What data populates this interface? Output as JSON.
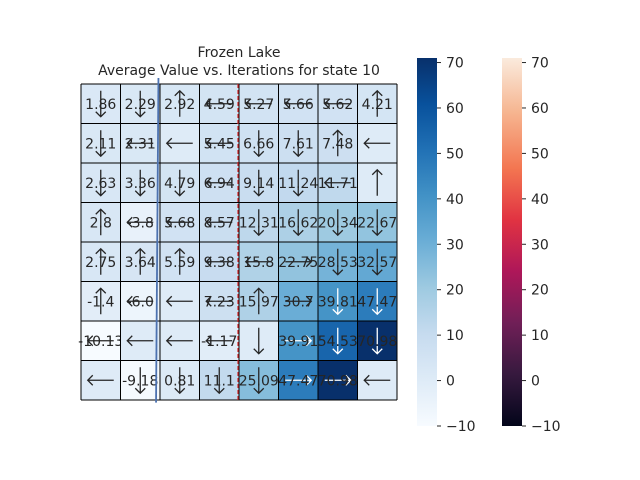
{
  "chart_data": {
    "type": "heatmap",
    "title": "Frozen Lake",
    "subtitle": "Average Value vs. Iterations for state 10",
    "xlabel": "",
    "ylabel": "",
    "colormap": "Blues",
    "vrange": [
      -10,
      71
    ],
    "grid": true,
    "cells": [
      [
        "1.86",
        "2.29",
        "2.92",
        "4.59",
        "5.27",
        "5.66",
        "5.62",
        "4.21"
      ],
      [
        "2.11",
        "2.31",
        "",
        "5.45",
        "6.66",
        "7.61",
        "7.48",
        ""
      ],
      [
        "2.63",
        "3.36",
        "4.79",
        "6.94",
        "9.14",
        "11.24",
        "11.71",
        ""
      ],
      [
        "2.8",
        "-3.8",
        "5.68",
        "8.57",
        "12.31",
        "16.62",
        "20.34",
        "22.67"
      ],
      [
        "2.75",
        "3.64",
        "5.59",
        "9.38",
        "15.8",
        "22.75",
        "28.53",
        "32.57"
      ],
      [
        "-1.4",
        "-6.0",
        "",
        "7.23",
        "15.97",
        "30.7",
        "39.81",
        "47.47"
      ],
      [
        "-10.13",
        "",
        "",
        "-1.17",
        "",
        "39.91",
        "54.53",
        "70.98"
      ],
      [
        "",
        "-9.18",
        "0.81",
        "11.1",
        "25.09",
        "47.47",
        "70.98",
        ""
      ]
    ],
    "values": [
      [
        1.86,
        2.29,
        2.92,
        4.59,
        5.27,
        5.66,
        5.62,
        4.21
      ],
      [
        2.11,
        2.31,
        0,
        5.45,
        6.66,
        7.61,
        7.48,
        0
      ],
      [
        2.63,
        3.36,
        4.79,
        6.94,
        9.14,
        11.24,
        11.71,
        0
      ],
      [
        2.8,
        -3.8,
        5.68,
        8.57,
        12.31,
        16.62,
        20.34,
        22.67
      ],
      [
        2.75,
        3.64,
        5.59,
        9.38,
        15.8,
        22.75,
        28.53,
        32.57
      ],
      [
        -1.4,
        -6.0,
        0,
        7.23,
        15.97,
        30.7,
        39.81,
        47.47
      ],
      [
        -10.13,
        0,
        0,
        -1.17,
        0,
        39.91,
        54.53,
        70.98
      ],
      [
        0,
        -9.18,
        0.81,
        11.1,
        25.09,
        47.47,
        70.98,
        0
      ]
    ],
    "arrows": [
      [
        "down",
        "down",
        "up",
        "left",
        "left",
        "left",
        "left",
        "up"
      ],
      [
        "down",
        "left",
        "left",
        "left",
        "down",
        "down",
        "up",
        "left"
      ],
      [
        "down",
        "down",
        "down",
        "left",
        "down",
        "down",
        "left",
        "up"
      ],
      [
        "up",
        "left",
        "left",
        "left",
        "down",
        "down",
        "down",
        "down"
      ],
      [
        "up",
        "up",
        "up",
        "left",
        "left",
        "right",
        "down",
        "down"
      ],
      [
        "up",
        "left",
        "left",
        "left",
        "up",
        "right",
        "down",
        "down"
      ],
      [
        "left",
        "left",
        "left",
        "left",
        "down",
        "right",
        "down",
        "down"
      ],
      [
        "left",
        "down",
        "down",
        "down",
        "down",
        "right",
        "right",
        "left"
      ]
    ],
    "overlay_line": {
      "color": "#4c72b0",
      "from": [
        0.0,
        1.1
      ],
      "to": [
        7.99,
        1.9
      ]
    },
    "vertical_marker": {
      "color": "#d62728",
      "style": "dashed",
      "x": 4.0
    },
    "colorbars": [
      {
        "colormap": "Blues",
        "range": [
          -10,
          71
        ],
        "ticks": [
          "−10",
          "0",
          "10",
          "20",
          "30",
          "40",
          "50",
          "60",
          "70"
        ]
      },
      {
        "colormap": "rocket",
        "range": [
          -10,
          71
        ],
        "ticks": [
          "−10",
          "0",
          "10",
          "20",
          "30",
          "40",
          "50",
          "60",
          "70"
        ]
      }
    ]
  }
}
